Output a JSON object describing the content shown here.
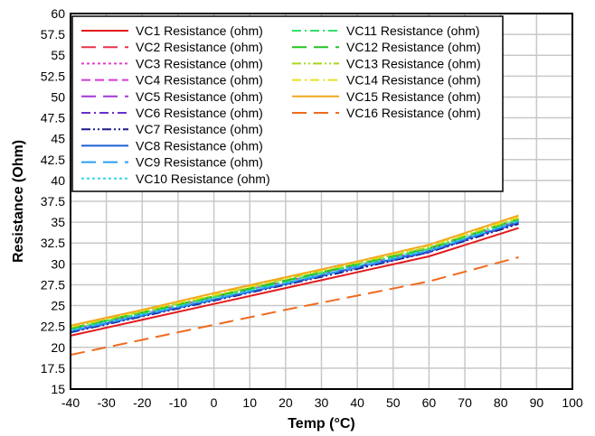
{
  "chart_data": {
    "type": "line",
    "xlabel": "Temp (°C)",
    "ylabel": "Resistance (Ohm)",
    "xlim": [
      -40,
      100
    ],
    "ylim": [
      15,
      60
    ],
    "xticks": [
      -40,
      -30,
      -20,
      -10,
      0,
      10,
      20,
      30,
      40,
      50,
      60,
      70,
      80,
      90,
      100
    ],
    "yticks": [
      "15",
      "17.5",
      "20",
      "22.5",
      "25",
      "27.5",
      "30",
      "32.5",
      "35",
      "37.5",
      "40",
      "42.5",
      "45",
      "47.5",
      "50",
      "52.5",
      "55",
      "57.5",
      "60"
    ],
    "grid": true,
    "legend_position": "top-left",
    "x": [
      -40,
      -20,
      0,
      20,
      40,
      60,
      85
    ],
    "series": [
      {
        "name": "VC1 Resistance (ohm)",
        "color": "#e31a1c",
        "dash": "solid",
        "values": [
          21.4,
          23.3,
          25.2,
          27.1,
          29.0,
          30.9,
          34.3
        ]
      },
      {
        "name": "VC2 Resistance (ohm)",
        "color": "#e8334a",
        "dash": "longdash",
        "values": [
          22.2,
          24.1,
          26.1,
          28.0,
          29.9,
          31.8,
          35.3
        ]
      },
      {
        "name": "VC3 Resistance (ohm)",
        "color": "#e040d0",
        "dash": "dot",
        "values": [
          22.0,
          23.9,
          25.9,
          27.8,
          29.7,
          31.6,
          35.1
        ]
      },
      {
        "name": "VC4 Resistance (ohm)",
        "color": "#d23ad8",
        "dash": "dash",
        "values": [
          22.1,
          24.0,
          26.0,
          27.9,
          29.8,
          31.7,
          35.2
        ]
      },
      {
        "name": "VC5 Resistance (ohm)",
        "color": "#a238d6",
        "dash": "longdash",
        "values": [
          22.0,
          23.9,
          25.8,
          27.7,
          29.6,
          31.5,
          35.0
        ]
      },
      {
        "name": "VC6 Resistance (ohm)",
        "color": "#6a2fc8",
        "dash": "dashdot",
        "values": [
          21.9,
          23.8,
          25.7,
          27.6,
          29.5,
          31.4,
          34.9
        ]
      },
      {
        "name": "VC7 Resistance (ohm)",
        "color": "#1a1a8c",
        "dash": "dashdotdot",
        "values": [
          21.8,
          23.7,
          25.6,
          27.5,
          29.4,
          31.4,
          34.8
        ]
      },
      {
        "name": "VC8 Resistance (ohm)",
        "color": "#1f5fd6",
        "dash": "solid",
        "values": [
          21.9,
          23.8,
          25.7,
          27.6,
          29.6,
          31.5,
          35.0
        ]
      },
      {
        "name": "VC9 Resistance (ohm)",
        "color": "#2a9df4",
        "dash": "longdash",
        "values": [
          22.0,
          23.9,
          25.8,
          27.7,
          29.6,
          31.6,
          35.1
        ]
      },
      {
        "name": "VC10 Resistance (ohm)",
        "color": "#2fd6e8",
        "dash": "dot",
        "values": [
          22.1,
          24.0,
          25.9,
          27.8,
          29.8,
          31.7,
          35.2
        ]
      },
      {
        "name": "VC11 Resistance (ohm)",
        "color": "#2ee06a",
        "dash": "dashdot",
        "values": [
          22.2,
          24.1,
          26.0,
          27.9,
          29.9,
          31.8,
          35.3
        ]
      },
      {
        "name": "VC12 Resistance (ohm)",
        "color": "#22c422",
        "dash": "longdash",
        "values": [
          22.3,
          24.2,
          26.1,
          28.0,
          30.0,
          31.9,
          35.4
        ]
      },
      {
        "name": "VC13 Resistance (ohm)",
        "color": "#a8d81e",
        "dash": "dashdotdot",
        "values": [
          22.4,
          24.3,
          26.2,
          28.2,
          30.1,
          32.0,
          35.5
        ]
      },
      {
        "name": "VC14 Resistance (ohm)",
        "color": "#e8e01e",
        "dash": "dashdot",
        "values": [
          22.5,
          24.4,
          26.3,
          28.3,
          30.2,
          32.2,
          35.6
        ]
      },
      {
        "name": "VC15 Resistance (ohm)",
        "color": "#f2a81e",
        "dash": "solid",
        "values": [
          22.6,
          24.5,
          26.5,
          28.4,
          30.3,
          32.3,
          35.8
        ]
      },
      {
        "name": "VC16 Resistance (ohm)",
        "color": "#f06a1e",
        "dash": "longdash",
        "values": [
          19.1,
          20.9,
          22.7,
          24.5,
          26.2,
          27.9,
          30.8
        ]
      }
    ]
  }
}
